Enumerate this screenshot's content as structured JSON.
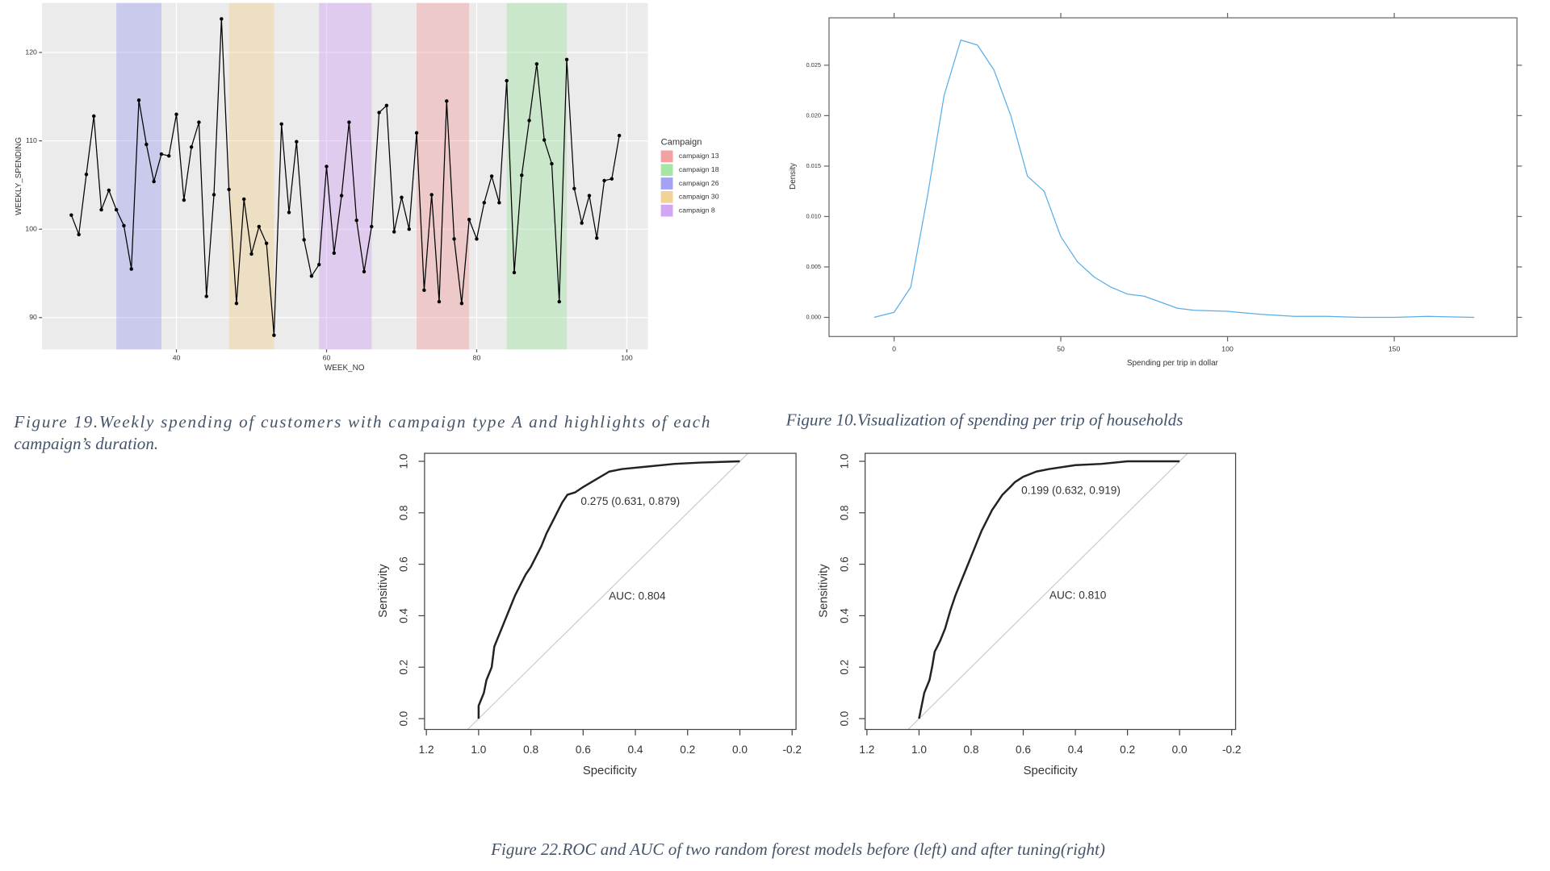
{
  "chart_data": [
    {
      "type": "line",
      "xlabel": "WEEK_NO",
      "ylabel": "WEEKLY_SPENDING",
      "x": [
        26,
        27,
        28,
        29,
        30,
        31,
        32,
        33,
        34,
        35,
        36,
        37,
        38,
        39,
        40,
        41,
        42,
        43,
        44,
        45,
        46,
        47,
        48,
        49,
        50,
        51,
        52,
        53,
        54,
        55,
        56,
        57,
        58,
        59,
        60,
        61,
        62,
        63,
        64,
        65,
        66,
        67,
        68,
        69,
        70,
        71,
        72,
        73,
        74,
        75,
        76,
        77,
        78,
        79,
        80,
        81,
        82,
        83,
        84,
        85,
        86,
        87,
        88,
        89,
        90,
        91,
        92,
        93,
        94,
        95,
        96,
        97,
        98,
        99
      ],
      "series": [
        {
          "color": "#000000",
          "values": [
            101.6,
            99.4,
            106.2,
            112.8,
            102.2,
            104.4,
            102.2,
            100.4,
            95.5,
            114.6,
            109.6,
            105.4,
            108.5,
            108.3,
            113,
            103.3,
            109.3,
            112.1,
            92.4,
            103.9,
            123.8,
            104.5,
            91.6,
            103.4,
            97.2,
            100.3,
            98.4,
            88,
            111.9,
            101.9,
            109.9,
            98.8,
            94.7,
            96,
            107.1,
            97.3,
            103.8,
            112.1,
            101,
            95.2,
            100.3,
            113.2,
            114,
            99.7,
            103.6,
            100,
            110.9,
            93.1,
            103.9,
            91.8,
            114.5,
            98.9,
            91.6,
            101.1,
            98.9,
            103,
            106,
            103,
            116.8,
            95.1,
            106.1,
            112.3,
            118.7,
            110.1,
            107.4,
            91.8,
            119.2,
            104.6,
            100.7,
            103.8,
            99,
            105.5,
            105.7,
            110.6
          ]
        }
      ],
      "points": true,
      "bands": [
        {
          "name": "campaign 26",
          "color": "#8c8cf0",
          "start": 32,
          "end": 38
        },
        {
          "name": "campaign 30",
          "color": "#f0c87a",
          "start": 47,
          "end": 53
        },
        {
          "name": "campaign 8",
          "color": "#c890f0",
          "start": 59,
          "end": 66
        },
        {
          "name": "campaign 13",
          "color": "#f08a8a",
          "start": 72,
          "end": 79
        },
        {
          "name": "campaign 18",
          "color": "#8ee08e",
          "start": 84,
          "end": 92
        }
      ],
      "legend_title": "Campaign",
      "legend_order": [
        3,
        4,
        0,
        1,
        2
      ],
      "legend": "right",
      "xlim": [
        22.1,
        102.8
      ],
      "xticks": [
        40,
        60,
        80,
        100
      ],
      "ylim": [
        86.4,
        125.6
      ],
      "yticks": [
        90,
        100,
        110,
        120
      ],
      "grid": true
    },
    {
      "type": "line",
      "xlabel": "Spending per trip in dollar",
      "ylabel": "Density",
      "x": [
        -6,
        0,
        5,
        10,
        15,
        20,
        25,
        30,
        35,
        40,
        45,
        50,
        55,
        60,
        65,
        70,
        75,
        80,
        85,
        90,
        100,
        110,
        120,
        130,
        140,
        150,
        160,
        174
      ],
      "series": [
        {
          "color": "#5aaee8",
          "values": [
            0,
            0.0005,
            0.003,
            0.012,
            0.022,
            0.0275,
            0.027,
            0.0245,
            0.02,
            0.014,
            0.0125,
            0.008,
            0.0055,
            0.004,
            0.003,
            0.0023,
            0.0021,
            0.0015,
            0.0009,
            0.0007,
            0.0006,
            0.0003,
            0.0001,
            0.0001,
            0,
            0,
            0.0001,
            0
          ]
        }
      ],
      "xlim": [
        -19.5,
        186.8
      ],
      "xticks": [
        0,
        50,
        100,
        150
      ],
      "ylim": [
        -0.0019,
        0.0297
      ],
      "yticks": [
        {
          "value": 0,
          "label": "0.000"
        },
        0.005,
        {
          "value": 0.01,
          "label": "0.010"
        },
        0.015,
        {
          "value": 0.02,
          "label": "0.020"
        },
        0.025
      ],
      "grid": false
    },
    {
      "type": "line",
      "xlabel": "Specificity",
      "ylabel": "Sensitivity",
      "x": [
        1.0,
        1.0,
        0.98,
        0.97,
        0.95,
        0.94,
        0.92,
        0.9,
        0.88,
        0.86,
        0.84,
        0.82,
        0.8,
        0.78,
        0.76,
        0.74,
        0.72,
        0.7,
        0.68,
        0.66,
        0.631,
        0.6,
        0.55,
        0.5,
        0.45,
        0.35,
        0.25,
        0.15,
        0.0
      ],
      "series": [
        {
          "color": "#222222",
          "values": [
            0,
            0.05,
            0.1,
            0.15,
            0.2,
            0.28,
            0.33,
            0.38,
            0.43,
            0.48,
            0.52,
            0.56,
            0.59,
            0.63,
            0.67,
            0.72,
            0.76,
            0.8,
            0.84,
            0.87,
            0.879,
            0.9,
            0.93,
            0.96,
            0.97,
            0.98,
            0.99,
            0.995,
            1.0
          ]
        }
      ],
      "annotations": [
        "0.275 (0.631, 0.879)",
        "AUC: 0.804"
      ],
      "reference_line": true,
      "xlim": [
        1.207,
        -0.215
      ],
      "xticks": [
        1.2,
        {
          "value": 1.0,
          "label": "1.0"
        },
        0.8,
        0.6,
        0.4,
        0.2,
        {
          "value": 0.0,
          "label": "0.0"
        },
        -0.2
      ],
      "ylim": [
        -0.042,
        1.031
      ],
      "yticks": [
        {
          "value": 0.0,
          "label": "0.0"
        },
        0.2,
        0.4,
        0.6,
        0.8,
        {
          "value": 1.0,
          "label": "1.0"
        }
      ],
      "grid": false
    },
    {
      "type": "line",
      "xlabel": "Specificity",
      "ylabel": "Sensitivity",
      "x": [
        1.0,
        0.99,
        0.98,
        0.96,
        0.95,
        0.94,
        0.92,
        0.9,
        0.88,
        0.86,
        0.84,
        0.82,
        0.8,
        0.78,
        0.76,
        0.74,
        0.72,
        0.7,
        0.68,
        0.65,
        0.632,
        0.6,
        0.55,
        0.5,
        0.4,
        0.3,
        0.2,
        0.0
      ],
      "series": [
        {
          "color": "#222222",
          "values": [
            0,
            0.05,
            0.1,
            0.15,
            0.2,
            0.26,
            0.3,
            0.35,
            0.42,
            0.48,
            0.53,
            0.58,
            0.63,
            0.68,
            0.73,
            0.77,
            0.81,
            0.84,
            0.87,
            0.9,
            0.919,
            0.94,
            0.96,
            0.97,
            0.985,
            0.99,
            1.0,
            1.0
          ]
        }
      ],
      "annotations": [
        "0.199 (0.632, 0.919)",
        "AUC: 0.810"
      ],
      "reference_line": true,
      "xlim": [
        1.207,
        -0.215
      ],
      "xticks": [
        1.2,
        {
          "value": 1.0,
          "label": "1.0"
        },
        0.8,
        0.6,
        0.4,
        0.2,
        {
          "value": 0.0,
          "label": "0.0"
        },
        -0.2
      ],
      "ylim": [
        -0.042,
        1.031
      ],
      "yticks": [
        {
          "value": 0.0,
          "label": "0.0"
        },
        0.2,
        0.4,
        0.6,
        0.8,
        {
          "value": 1.0,
          "label": "1.0"
        }
      ],
      "grid": false
    }
  ],
  "captions": [
    [
      "Figure 19.Weekly spending of customers with campaign type A and highlights of each",
      "campaign’s duration."
    ],
    [
      "Figure 10.Visualization of spending per trip of households"
    ],
    [
      "Figure 22.ROC and AUC of two random forest models before (left) and after tuning(right)"
    ]
  ]
}
